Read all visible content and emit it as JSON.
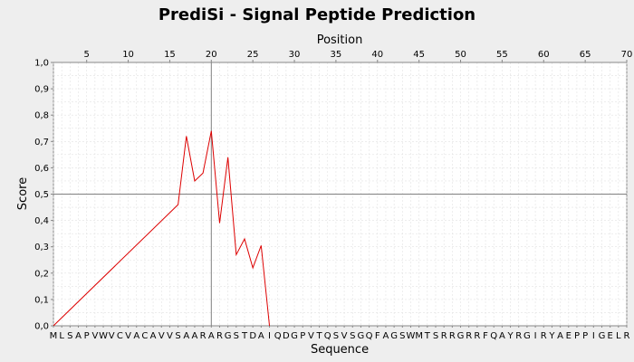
{
  "chart_data": {
    "type": "line",
    "title": "PrediSi - Signal Peptide Prediction",
    "top_axis_label": "Position",
    "xlabel": "Sequence",
    "ylabel": "Score",
    "top_ticks": [
      5,
      10,
      15,
      20,
      25,
      30,
      35,
      40,
      45,
      50,
      55,
      60,
      65,
      70
    ],
    "y_ticks": [
      "0,0",
      "0,1",
      "0,2",
      "0,3",
      "0,4",
      "0,5",
      "0,6",
      "0,7",
      "0,8",
      "0,9",
      "1,0"
    ],
    "ylim": [
      0,
      1
    ],
    "xlim": [
      1,
      70
    ],
    "sequence": [
      "M",
      "L",
      "S",
      "A",
      "P",
      "V",
      "W",
      "V",
      "C",
      "V",
      "A",
      "C",
      "A",
      "V",
      "V",
      "S",
      "A",
      "A",
      "R",
      "A",
      "R",
      "G",
      "S",
      "T",
      "D",
      "A",
      "I",
      "Q",
      "D",
      "G",
      "P",
      "V",
      "T",
      "Q",
      "S",
      "V",
      "S",
      "G",
      "Q",
      "F",
      "A",
      "G",
      "S",
      "W",
      "M",
      "T",
      "S",
      "R",
      "R",
      "G",
      "R",
      "R",
      "F",
      "Q",
      "A",
      "Y",
      "R",
      "G",
      "I",
      "R",
      "Y",
      "A",
      "E",
      "P",
      "P",
      "I",
      "G",
      "E",
      "L",
      "R"
    ],
    "series": [
      {
        "x": [
          1,
          16,
          17,
          18,
          19,
          20,
          21,
          22,
          23,
          24,
          25,
          26,
          27
        ],
        "y": [
          0.0,
          0.46,
          0.72,
          0.55,
          0.58,
          0.74,
          0.39,
          0.64,
          0.27,
          0.33,
          0.22,
          0.305,
          0.0
        ],
        "color": "#dd0000"
      }
    ],
    "threshold": 0.5,
    "marker_position": 20,
    "grid": true
  }
}
